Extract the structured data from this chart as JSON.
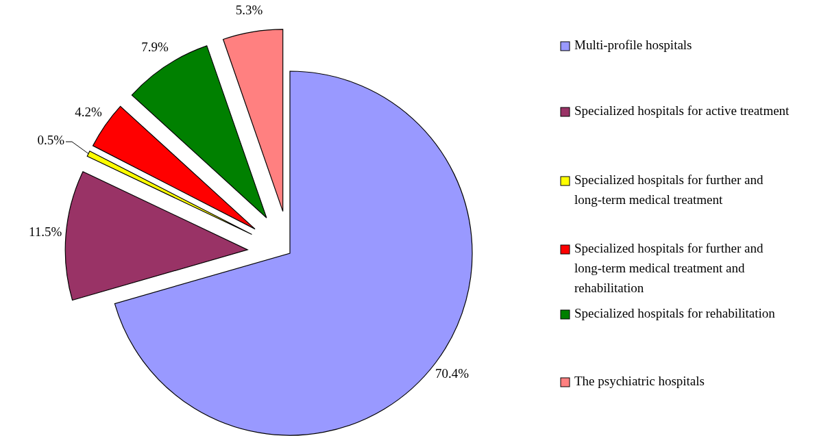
{
  "chart_data": {
    "type": "pie",
    "categories": [
      "Multi-profile hospitals",
      "Specialized hospitals for active treatment",
      "Specialized hospitals for further and long-term medical treatment",
      "Specialized hospitals for further and long-term medical treatment and rehabilitation",
      "Specialized hospitals for rehabilitation",
      "The psychiatric hospitals"
    ],
    "values": [
      70.4,
      11.5,
      0.5,
      4.2,
      7.9,
      5.3
    ],
    "value_labels": [
      "70.4%",
      "11.5%",
      "0.5%",
      "4.2%",
      "7.9%",
      "5.3%"
    ],
    "colors": [
      "#9999ff",
      "#993366",
      "#ffff00",
      "#ff0000",
      "#008000",
      "#ff8080"
    ],
    "legend": "right"
  }
}
